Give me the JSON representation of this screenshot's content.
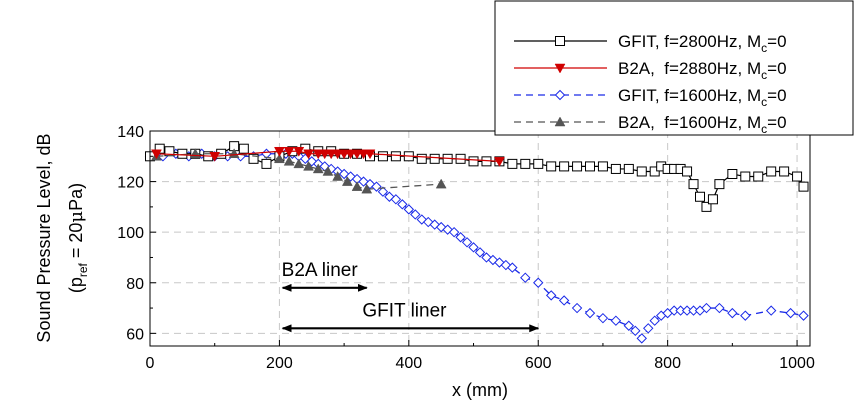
{
  "chart_data": {
    "type": "line",
    "xlabel": "x (mm)",
    "ylabel": {
      "line1": "Sound Pressure Level, dB",
      "line2_pre": "(p",
      "line2_sub": "ref",
      "line2_post": " = 20",
      "line2_mu": "μ",
      "line2_end": "Pa)"
    },
    "xlim": [
      0,
      1020
    ],
    "ylim": [
      55,
      140
    ],
    "xticks": [
      "0",
      "200",
      "400",
      "600",
      "800",
      "1000"
    ],
    "yticks": [
      "60",
      "80",
      "100",
      "120",
      "140"
    ],
    "grid": true,
    "legend_position": "top-right",
    "annotations": [
      {
        "text": "B2A liner",
        "x_from": 205,
        "x_to": 335,
        "y": 78
      },
      {
        "text": "GFIT liner",
        "x_from": 205,
        "x_to": 600,
        "y": 62
      }
    ],
    "series": [
      {
        "name_pre": "GFIT, f=2800Hz, M",
        "name_sub": "c",
        "name_post": "=0",
        "color": "#000000",
        "marker": "square",
        "dash": "solid",
        "x": [
          0,
          15,
          30,
          50,
          70,
          90,
          110,
          130,
          145,
          160,
          180,
          200,
          220,
          240,
          260,
          280,
          300,
          320,
          340,
          360,
          380,
          400,
          420,
          440,
          460,
          480,
          500,
          520,
          540,
          560,
          580,
          600,
          620,
          640,
          660,
          680,
          700,
          720,
          740,
          760,
          780,
          790,
          800,
          810,
          820,
          830,
          840,
          850,
          860,
          870,
          880,
          900,
          920,
          940,
          960,
          980,
          1000,
          1010
        ],
        "y": [
          130,
          133,
          132,
          131,
          131,
          130,
          131,
          134,
          133,
          129,
          127,
          130,
          132,
          133,
          132,
          132,
          131,
          131,
          130,
          130,
          130,
          130,
          129,
          129,
          129,
          129,
          128,
          128,
          128,
          127,
          127,
          127,
          126,
          126,
          126,
          126,
          126,
          125,
          125,
          124,
          124,
          126,
          125,
          125,
          125,
          124,
          119,
          114,
          110,
          113,
          119,
          123,
          122,
          122,
          124,
          124,
          122,
          118
        ]
      },
      {
        "name_pre": "B2A,  f=2880Hz, M",
        "name_sub": "c",
        "name_post": "=0",
        "color": "#d00000",
        "marker": "triangle-down",
        "dash": "solid",
        "x": [
          10,
          100,
          200,
          215,
          230,
          245,
          260,
          270,
          280,
          290,
          300,
          310,
          320,
          330,
          340,
          540
        ],
        "y": [
          131,
          130,
          132,
          132,
          132,
          131,
          131,
          131,
          131,
          131,
          131,
          131,
          131,
          131,
          131,
          128
        ]
      },
      {
        "name_pre": "GFIT, f=1600Hz, M",
        "name_sub": "c",
        "name_post": "=0",
        "color": "#1a2ae8",
        "marker": "diamond",
        "dash": "dashed",
        "x": [
          0,
          20,
          40,
          60,
          80,
          100,
          120,
          140,
          160,
          180,
          200,
          210,
          220,
          230,
          240,
          250,
          260,
          270,
          280,
          290,
          300,
          310,
          320,
          330,
          340,
          350,
          360,
          370,
          380,
          390,
          400,
          410,
          420,
          430,
          440,
          450,
          460,
          470,
          480,
          490,
          500,
          510,
          520,
          530,
          540,
          550,
          560,
          580,
          600,
          620,
          640,
          660,
          680,
          700,
          720,
          740,
          750,
          760,
          770,
          780,
          790,
          800,
          810,
          820,
          830,
          840,
          850,
          860,
          880,
          900,
          920,
          960,
          990,
          1010
        ],
        "y": [
          130,
          130,
          131,
          130,
          131,
          130,
          130,
          130,
          130,
          131,
          131,
          131,
          131,
          130,
          129,
          128,
          127,
          126,
          125,
          124,
          123,
          122,
          121,
          120,
          119,
          118,
          116,
          114,
          113,
          111,
          109,
          107,
          105,
          104,
          103,
          102,
          101,
          100,
          98,
          96,
          94,
          92,
          90,
          89,
          88,
          87,
          86,
          82,
          80,
          75,
          73,
          70,
          68,
          66,
          65,
          63,
          61,
          58,
          62,
          65,
          67,
          68,
          69,
          69,
          69,
          69,
          69,
          70,
          70,
          68,
          67,
          69,
          68,
          67
        ]
      },
      {
        "name_pre": "B2A,  f=1600Hz, M",
        "name_sub": "c",
        "name_post": "=0",
        "color": "#555555",
        "marker": "triangle-up",
        "dash": "dashed",
        "x": [
          10,
          70,
          130,
          200,
          215,
          230,
          245,
          260,
          275,
          290,
          305,
          320,
          335,
          450
        ],
        "y": [
          130,
          131,
          131,
          129,
          128,
          127,
          126,
          125,
          124,
          122,
          120,
          118,
          117,
          119
        ]
      }
    ]
  }
}
